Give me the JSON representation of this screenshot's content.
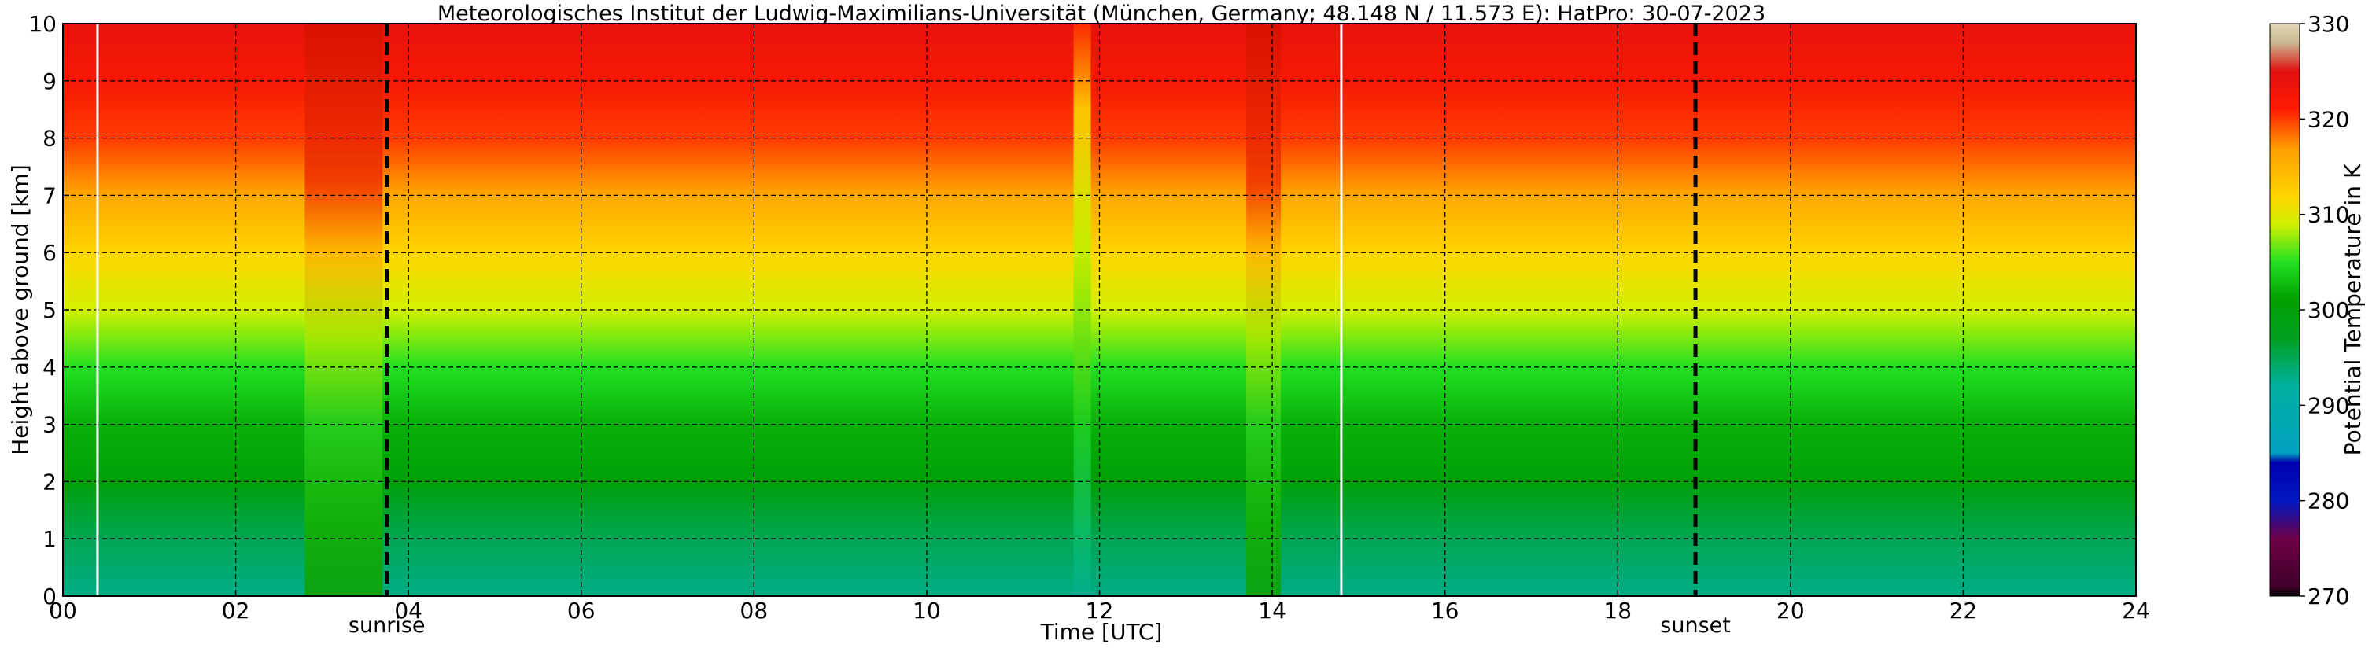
{
  "chart_data": {
    "type": "heatmap",
    "title": "Meteorologisches Institut der Ludwig-Maximilians-Universität (München, Germany; 48.148 N / 11.573 E):    HatPro: 30-07-2023",
    "xlabel": "Time [UTC]",
    "ylabel": "Height above ground [km]",
    "xlim": [
      0,
      24
    ],
    "ylim": [
      0,
      10
    ],
    "x_ticks": [
      "00",
      "02",
      "04",
      "06",
      "08",
      "10",
      "12",
      "14",
      "16",
      "18",
      "20",
      "22",
      "24"
    ],
    "y_ticks": [
      "0",
      "1",
      "2",
      "3",
      "4",
      "5",
      "6",
      "7",
      "8",
      "9",
      "10"
    ],
    "grid": true,
    "colorbar": {
      "label": "Potential Temperature in K",
      "range": [
        270,
        330
      ],
      "ticks": [
        "270",
        "280",
        "290",
        "300",
        "310",
        "320",
        "330"
      ],
      "stops": [
        {
          "value": 270,
          "color": "#000000"
        },
        {
          "value": 271,
          "color": "#40002a"
        },
        {
          "value": 276,
          "color": "#6e0046"
        },
        {
          "value": 280,
          "color": "#0018c0"
        },
        {
          "value": 284,
          "color": "#0000b0"
        },
        {
          "value": 285,
          "color": "#00a2c0"
        },
        {
          "value": 292,
          "color": "#00b0a0"
        },
        {
          "value": 297,
          "color": "#00a020"
        },
        {
          "value": 301,
          "color": "#00a000"
        },
        {
          "value": 305,
          "color": "#22e022"
        },
        {
          "value": 309,
          "color": "#d2f000"
        },
        {
          "value": 312,
          "color": "#ffd400"
        },
        {
          "value": 317,
          "color": "#ff9c00"
        },
        {
          "value": 321,
          "color": "#ff1a00"
        },
        {
          "value": 325,
          "color": "#e01010"
        },
        {
          "value": 328,
          "color": "#c8b890"
        },
        {
          "value": 330,
          "color": "#e2d8b8"
        }
      ]
    },
    "theta_profile_km_K": [
      {
        "h": 0.0,
        "t": 293
      },
      {
        "h": 1.0,
        "t": 295
      },
      {
        "h": 2.0,
        "t": 300
      },
      {
        "h": 3.0,
        "t": 302
      },
      {
        "h": 4.0,
        "t": 305
      },
      {
        "h": 5.0,
        "t": 309
      },
      {
        "h": 6.0,
        "t": 312
      },
      {
        "h": 7.0,
        "t": 316
      },
      {
        "h": 8.0,
        "t": 320
      },
      {
        "h": 9.0,
        "t": 322
      },
      {
        "h": 10.0,
        "t": 324
      }
    ],
    "events": [
      {
        "label": "sunrise",
        "time": 3.75,
        "style": "black-dashed"
      },
      {
        "label": "sunset",
        "time": 18.9,
        "style": "black-dashed"
      }
    ],
    "data_gaps": [
      0.4,
      14.8
    ],
    "anomalies": [
      {
        "time_start": 2.8,
        "time_end": 3.7,
        "description": "warmer column"
      },
      {
        "time_start": 11.7,
        "time_end": 11.9,
        "description": "narrow spike"
      },
      {
        "time_start": 13.7,
        "time_end": 14.1,
        "description": "warm column"
      }
    ]
  }
}
